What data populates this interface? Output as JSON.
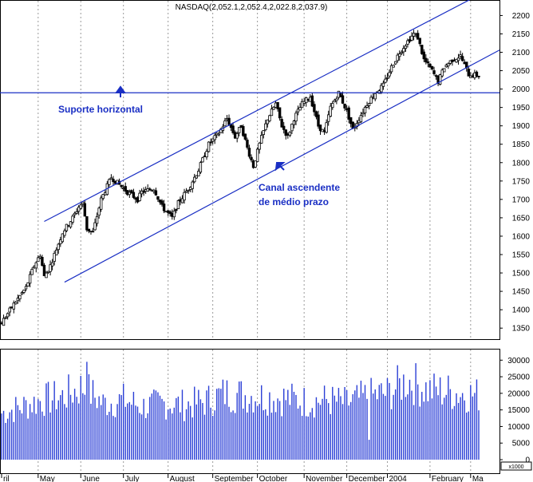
{
  "chart_data": {
    "type": "candlestick",
    "title": "NASDAQ(2,052.1,2,052.4,2,022.8,2,037.9)",
    "price_axis": {
      "ylim": [
        1320,
        2240
      ],
      "ticks": [
        "2200",
        "2150",
        "2100",
        "2050",
        "2000",
        "1950",
        "1900",
        "1850",
        "1800",
        "1750",
        "1700",
        "1650",
        "1600",
        "1550",
        "1500",
        "1450",
        "1400",
        "1350"
      ]
    },
    "volume_axis": {
      "ylim": [
        0,
        32000
      ],
      "ticks": [
        "30000",
        "25000",
        "20000",
        "15000",
        "10000",
        "5000",
        "0"
      ],
      "unit_label": "x1000"
    },
    "months": [
      {
        "label": "ril",
        "x": 0
      },
      {
        "label": "May",
        "x": 18
      },
      {
        "label": "June",
        "x": 39
      },
      {
        "label": "July",
        "x": 60
      },
      {
        "label": "August",
        "x": 82
      },
      {
        "label": "September",
        "x": 104
      },
      {
        "label": "October",
        "x": 126
      },
      {
        "label": "November",
        "x": 149
      },
      {
        "label": "December",
        "x": 170
      },
      {
        "label": "2004",
        "x": 190
      },
      {
        "label": "February",
        "x": 211
      },
      {
        "label": "Ma",
        "x": 231
      }
    ],
    "x_count": 236,
    "price_keyframes": [
      [
        0,
        1365
      ],
      [
        6,
        1415
      ],
      [
        12,
        1460
      ],
      [
        16,
        1520
      ],
      [
        19,
        1550
      ],
      [
        21,
        1490
      ],
      [
        24,
        1520
      ],
      [
        30,
        1610
      ],
      [
        35,
        1650
      ],
      [
        38,
        1680
      ],
      [
        40,
        1690
      ],
      [
        42,
        1620
      ],
      [
        45,
        1610
      ],
      [
        49,
        1700
      ],
      [
        54,
        1760
      ],
      [
        58,
        1740
      ],
      [
        62,
        1720
      ],
      [
        67,
        1700
      ],
      [
        69,
        1720
      ],
      [
        75,
        1730
      ],
      [
        79,
        1680
      ],
      [
        84,
        1650
      ],
      [
        87,
        1690
      ],
      [
        92,
        1730
      ],
      [
        97,
        1780
      ],
      [
        102,
        1850
      ],
      [
        107,
        1880
      ],
      [
        111,
        1920
      ],
      [
        115,
        1870
      ],
      [
        118,
        1900
      ],
      [
        121,
        1840
      ],
      [
        124,
        1790
      ],
      [
        127,
        1850
      ],
      [
        131,
        1920
      ],
      [
        135,
        1960
      ],
      [
        138,
        1900
      ],
      [
        141,
        1870
      ],
      [
        144,
        1920
      ],
      [
        148,
        1960
      ],
      [
        152,
        1980
      ],
      [
        156,
        1900
      ],
      [
        159,
        1880
      ],
      [
        162,
        1950
      ],
      [
        166,
        1990
      ],
      [
        170,
        1940
      ],
      [
        173,
        1890
      ],
      [
        176,
        1920
      ],
      [
        180,
        1960
      ],
      [
        184,
        1990
      ],
      [
        188,
        2010
      ],
      [
        192,
        2060
      ],
      [
        196,
        2100
      ],
      [
        200,
        2130
      ],
      [
        203,
        2150
      ],
      [
        205,
        2140
      ],
      [
        208,
        2080
      ],
      [
        212,
        2050
      ],
      [
        215,
        2020
      ],
      [
        218,
        2060
      ],
      [
        222,
        2080
      ],
      [
        226,
        2090
      ],
      [
        230,
        2040
      ],
      [
        233,
        2038
      ]
    ],
    "volume_keyframes": [
      [
        0,
        14000
      ],
      [
        10,
        16000
      ],
      [
        20,
        18000
      ],
      [
        30,
        19000
      ],
      [
        40,
        22000
      ],
      [
        50,
        17000
      ],
      [
        60,
        18000
      ],
      [
        70,
        16000
      ],
      [
        80,
        17000
      ],
      [
        90,
        16500
      ],
      [
        100,
        17500
      ],
      [
        110,
        20000
      ],
      [
        120,
        19500
      ],
      [
        130,
        19000
      ],
      [
        140,
        18500
      ],
      [
        150,
        17500
      ],
      [
        160,
        18000
      ],
      [
        170,
        17000
      ],
      [
        180,
        19000
      ],
      [
        190,
        20000
      ],
      [
        200,
        24000
      ],
      [
        210,
        21000
      ],
      [
        220,
        20500
      ],
      [
        233,
        19500
      ]
    ],
    "channel": {
      "upper": [
        [
          21,
          1640
        ],
        [
          233,
          2250
        ]
      ],
      "lower": [
        [
          31,
          1475
        ],
        [
          233,
          2070
        ]
      ]
    },
    "horizontal_support": 1990,
    "annotations": [
      {
        "text": "Suporte horizontal",
        "kind": "label"
      },
      {
        "text": "Canal ascendente",
        "kind": "label"
      },
      {
        "text": "de médio prazo",
        "kind": "label"
      }
    ],
    "colors": {
      "line": "#1a2fc4",
      "volume": "#2b3fd6",
      "candle": "#000000"
    }
  }
}
